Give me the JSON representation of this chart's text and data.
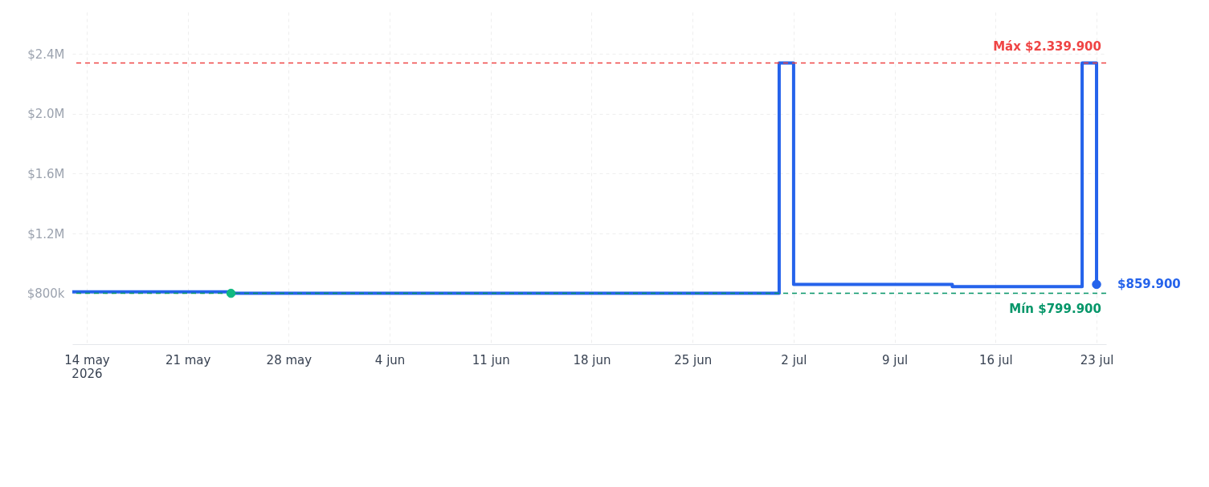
{
  "chart_data": {
    "type": "step",
    "xlim": [
      "2026-05-13",
      "2026-07-23T16:00"
    ],
    "ylim": [
      460000,
      2680000
    ],
    "xticks": [
      {
        "value": "2026-05-14",
        "label": "14 may\n2026"
      },
      {
        "value": "2026-05-21",
        "label": "21 may"
      },
      {
        "value": "2026-05-28",
        "label": "28 may"
      },
      {
        "value": "2026-06-04",
        "label": "4 jun"
      },
      {
        "value": "2026-06-11",
        "label": "11 jun"
      },
      {
        "value": "2026-06-18",
        "label": "18 jun"
      },
      {
        "value": "2026-06-25",
        "label": "25 jun"
      },
      {
        "value": "2026-07-02",
        "label": "2 jul"
      },
      {
        "value": "2026-07-09",
        "label": "9 jul"
      },
      {
        "value": "2026-07-16",
        "label": "16 jul"
      },
      {
        "value": "2026-07-23",
        "label": "23 jul"
      }
    ],
    "yticks": [
      {
        "value": 800000,
        "label": "$800k"
      },
      {
        "value": 1200000,
        "label": "$1.2M"
      },
      {
        "value": 1600000,
        "label": "$1.6M"
      },
      {
        "value": 2000000,
        "label": "$2.0M"
      },
      {
        "value": 2400000,
        "label": "$2.4M"
      }
    ],
    "series": [
      {
        "color": "#2563eb",
        "x": [
          "2026-05-13",
          "2026-05-24",
          "2026-07-01",
          "2026-07-02",
          "2026-07-13",
          "2026-07-22",
          "2026-07-23"
        ],
        "values": [
          809900,
          799900,
          2339900,
          859900,
          844900,
          2339900,
          859900
        ]
      },
      {
        "type": "scatter",
        "color": "#10b981",
        "marker": "circle",
        "x": [
          "2026-05-24"
        ],
        "values": [
          799900
        ]
      },
      {
        "type": "scatter",
        "color": "#2563eb",
        "marker": "circle",
        "x": [
          "2026-07-23"
        ],
        "values": [
          859900
        ]
      }
    ],
    "ref_lines": [
      {
        "axis": "y",
        "value": 2339900,
        "label": "Máx $2.339.900",
        "color": "#ef4444",
        "line_style": "dashed"
      },
      {
        "axis": "y",
        "value": 799900,
        "label": "Mín $799.900",
        "color": "#059669",
        "line_style": "dashed"
      }
    ],
    "annotations": [
      {
        "text": "$859.900",
        "x": "2026-07-23",
        "y": 859900
      }
    ],
    "grid": true
  }
}
